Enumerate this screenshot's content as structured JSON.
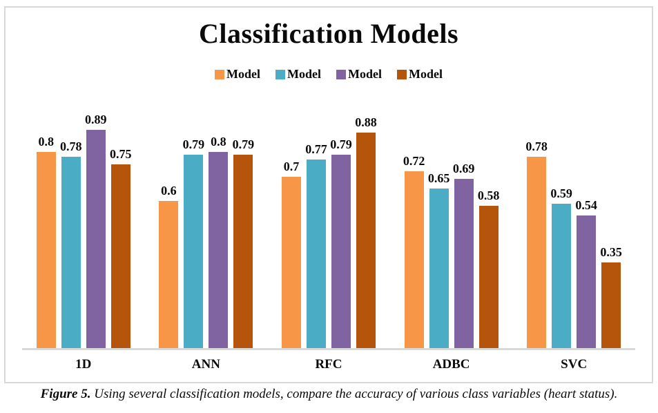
{
  "title": "Classification Models",
  "legend": [
    {
      "label": "Model",
      "color": "#F79646"
    },
    {
      "label": "Model",
      "color": "#4BACC6"
    },
    {
      "label": "Model",
      "color": "#8064A2"
    },
    {
      "label": "Model",
      "color": "#B5550C"
    }
  ],
  "caption": {
    "prefix": "Figure 5.",
    "text": " Using several classification models, compare the accuracy of various class variables (heart status)."
  },
  "chart_data": {
    "type": "bar",
    "title": "Classification Models",
    "categories": [
      "1D",
      "ANN",
      "RFC",
      "ADBC",
      "SVC"
    ],
    "series": [
      {
        "name": "Model",
        "color": "#F79646",
        "values": [
          0.8,
          0.6,
          0.7,
          0.72,
          0.78
        ]
      },
      {
        "name": "Model",
        "color": "#4BACC6",
        "values": [
          0.78,
          0.79,
          0.77,
          0.65,
          0.59
        ]
      },
      {
        "name": "Model",
        "color": "#8064A2",
        "values": [
          0.89,
          0.8,
          0.79,
          0.69,
          0.54
        ]
      },
      {
        "name": "Model",
        "color": "#B5550C",
        "values": [
          0.75,
          0.79,
          0.88,
          0.58,
          0.35
        ]
      }
    ],
    "xlabel": "",
    "ylabel": "",
    "ylim": [
      0,
      1
    ],
    "grid": false,
    "legend_position": "top",
    "value_labels": true,
    "axis_color": "#D9D9D9",
    "frame_color": "#D9D9D9"
  }
}
